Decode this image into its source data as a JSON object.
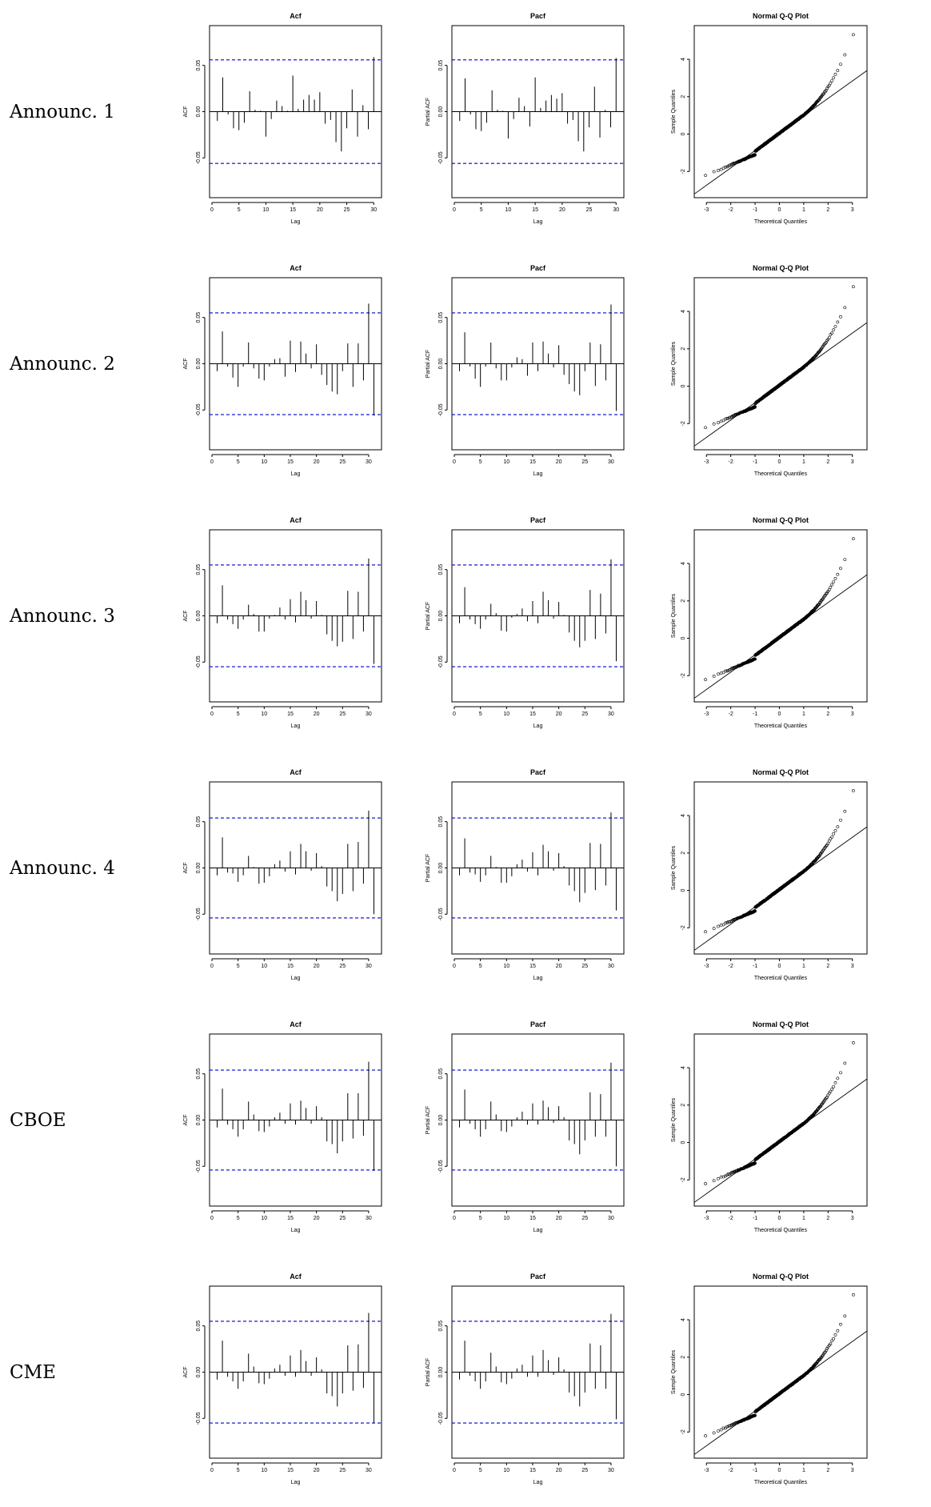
{
  "rows": [
    {
      "label": "Announc. 1"
    },
    {
      "label": "Announc. 2"
    },
    {
      "label": "Announc. 3"
    },
    {
      "label": "Announc. 4"
    },
    {
      "label": "CBOE"
    },
    {
      "label": "CME"
    }
  ],
  "colors": {
    "bounds": "#0000cc",
    "ink": "#000000"
  },
  "chart_data": [
    {
      "type": "bar",
      "row": "Announc. 1",
      "title": "Acf",
      "xlabel": "Lag",
      "ylabel": "ACF",
      "bounds": [
        0.056,
        -0.056
      ],
      "ylim": [
        -0.093,
        0.093
      ],
      "xlim": [
        0,
        31
      ],
      "x": [
        1,
        2,
        3,
        4,
        5,
        6,
        7,
        8,
        9,
        10,
        11,
        12,
        13,
        14,
        15,
        16,
        17,
        18,
        19,
        20,
        21,
        22,
        23,
        24,
        25,
        26,
        27,
        28,
        29,
        30
      ],
      "values": [
        -0.01,
        0.037,
        -0.003,
        -0.018,
        -0.02,
        -0.012,
        0.022,
        0.002,
        0.001,
        -0.027,
        -0.008,
        0.012,
        0.006,
        0.001,
        0.039,
        0.003,
        0.013,
        0.018,
        0.013,
        0.021,
        -0.013,
        -0.009,
        -0.033,
        -0.043,
        -0.018,
        0.024,
        -0.027,
        0.007,
        -0.019,
        0.059
      ]
    },
    {
      "type": "bar",
      "row": "Announc. 1",
      "title": "Pacf",
      "xlabel": "Lag",
      "ylabel": "Partial ACF",
      "bounds": [
        0.056,
        -0.056
      ],
      "ylim": [
        -0.093,
        0.093
      ],
      "xlim": [
        0,
        31
      ],
      "x": [
        1,
        2,
        3,
        4,
        5,
        6,
        7,
        8,
        9,
        10,
        11,
        12,
        13,
        14,
        15,
        16,
        17,
        18,
        19,
        20,
        21,
        22,
        23,
        24,
        25,
        26,
        27,
        28,
        29,
        30
      ],
      "values": [
        -0.01,
        0.036,
        -0.003,
        -0.019,
        -0.021,
        -0.012,
        0.023,
        0.002,
        0.001,
        -0.029,
        -0.008,
        0.015,
        0.006,
        -0.016,
        0.037,
        0.004,
        0.012,
        0.018,
        0.014,
        0.02,
        -0.013,
        -0.009,
        -0.032,
        -0.043,
        -0.017,
        0.027,
        -0.028,
        0.002,
        -0.017,
        0.058
      ]
    },
    {
      "type": "scatter",
      "row": "Announc. 1",
      "title": "Normal Q-Q Plot",
      "xlabel": "Theoretical Quantiles",
      "ylabel": "Sample Quantiles",
      "xlim": [
        -3.5,
        3.6
      ],
      "ylim": [
        -3.4,
        5.8
      ],
      "line": {
        "slope": 0.93,
        "intercept": 0.05
      }
    },
    {
      "type": "bar",
      "row": "Announc. 2",
      "title": "Acf",
      "xlabel": "Lag",
      "ylabel": "ACF",
      "bounds": [
        0.055,
        -0.055
      ],
      "ylim": [
        -0.093,
        0.093
      ],
      "xlim": [
        0,
        32
      ],
      "x": [
        1,
        2,
        3,
        4,
        5,
        6,
        7,
        8,
        9,
        10,
        11,
        12,
        13,
        14,
        15,
        16,
        17,
        18,
        19,
        20,
        21,
        22,
        23,
        24,
        25,
        26,
        27,
        28,
        29,
        30,
        31
      ],
      "values": [
        -0.008,
        0.035,
        -0.003,
        -0.015,
        -0.025,
        -0.003,
        0.023,
        -0.005,
        -0.016,
        -0.018,
        -0.003,
        0.005,
        0.006,
        -0.014,
        0.025,
        -0.009,
        0.024,
        0.011,
        -0.005,
        0.021,
        -0.012,
        -0.023,
        -0.03,
        -0.033,
        -0.008,
        0.022,
        -0.025,
        0.022,
        -0.018,
        0.065,
        -0.056
      ]
    },
    {
      "type": "bar",
      "row": "Announc. 2",
      "title": "Pacf",
      "xlabel": "Lag",
      "ylabel": "Partial ACF",
      "bounds": [
        0.055,
        -0.055
      ],
      "ylim": [
        -0.093,
        0.093
      ],
      "xlim": [
        0,
        32
      ],
      "x": [
        1,
        2,
        3,
        4,
        5,
        6,
        7,
        8,
        9,
        10,
        11,
        12,
        13,
        14,
        15,
        16,
        17,
        18,
        19,
        20,
        21,
        22,
        23,
        24,
        25,
        26,
        27,
        28,
        29,
        30,
        31
      ],
      "values": [
        -0.008,
        0.034,
        -0.003,
        -0.016,
        -0.025,
        -0.003,
        0.023,
        -0.005,
        -0.018,
        -0.018,
        -0.004,
        0.007,
        0.005,
        -0.013,
        0.023,
        -0.008,
        0.024,
        0.011,
        -0.004,
        0.02,
        -0.012,
        -0.022,
        -0.03,
        -0.034,
        -0.008,
        0.023,
        -0.024,
        0.021,
        -0.018,
        0.064,
        -0.051
      ]
    },
    {
      "type": "scatter",
      "row": "Announc. 2",
      "title": "Normal Q-Q Plot",
      "xlabel": "Theoretical Quantiles",
      "ylabel": "Sample Quantiles",
      "xlim": [
        -3.5,
        3.6
      ],
      "ylim": [
        -3.4,
        5.8
      ],
      "line": {
        "slope": 0.93,
        "intercept": 0.05
      }
    },
    {
      "type": "bar",
      "row": "Announc. 3",
      "title": "Acf",
      "xlabel": "Lag",
      "ylabel": "ACF",
      "bounds": [
        0.055,
        -0.055
      ],
      "ylim": [
        -0.093,
        0.093
      ],
      "xlim": [
        0,
        32
      ],
      "x": [
        1,
        2,
        3,
        4,
        5,
        6,
        7,
        8,
        9,
        10,
        11,
        12,
        13,
        14,
        15,
        16,
        17,
        18,
        19,
        20,
        21,
        22,
        23,
        24,
        25,
        26,
        27,
        28,
        29,
        30,
        31
      ],
      "values": [
        -0.008,
        0.033,
        -0.004,
        -0.009,
        -0.014,
        -0.004,
        0.012,
        0.002,
        -0.017,
        -0.017,
        -0.003,
        0.001,
        0.009,
        -0.004,
        0.018,
        -0.007,
        0.026,
        0.017,
        -0.003,
        0.016,
        0.001,
        -0.02,
        -0.027,
        -0.033,
        -0.028,
        0.027,
        -0.025,
        0.026,
        -0.017,
        0.062,
        -0.052
      ]
    },
    {
      "type": "bar",
      "row": "Announc. 3",
      "title": "Pacf",
      "xlabel": "Lag",
      "ylabel": "Partial ACF",
      "bounds": [
        0.055,
        -0.055
      ],
      "ylim": [
        -0.093,
        0.093
      ],
      "xlim": [
        0,
        32
      ],
      "x": [
        1,
        2,
        3,
        4,
        5,
        6,
        7,
        8,
        9,
        10,
        11,
        12,
        13,
        14,
        15,
        16,
        17,
        18,
        19,
        20,
        21,
        22,
        23,
        24,
        25,
        26,
        27,
        28,
        29,
        30,
        31
      ],
      "values": [
        -0.008,
        0.031,
        -0.004,
        -0.009,
        -0.014,
        -0.004,
        0.013,
        0.003,
        -0.016,
        -0.017,
        -0.002,
        0.002,
        0.008,
        -0.006,
        0.016,
        -0.008,
        0.026,
        0.017,
        -0.003,
        0.015,
        0.001,
        -0.018,
        -0.027,
        -0.034,
        -0.027,
        0.028,
        -0.025,
        0.024,
        -0.019,
        0.061,
        -0.049
      ]
    },
    {
      "type": "scatter",
      "row": "Announc. 3",
      "title": "Normal Q-Q Plot",
      "xlabel": "Theoretical Quantiles",
      "ylabel": "Sample Quantiles",
      "xlim": [
        -3.5,
        3.6
      ],
      "ylim": [
        -3.4,
        5.8
      ],
      "line": {
        "slope": 0.93,
        "intercept": 0.05
      }
    },
    {
      "type": "bar",
      "row": "Announc. 4",
      "title": "Acf",
      "xlabel": "Lag",
      "ylabel": "ACF",
      "bounds": [
        0.054,
        -0.054
      ],
      "ylim": [
        -0.093,
        0.093
      ],
      "xlim": [
        0,
        32
      ],
      "x": [
        1,
        2,
        3,
        4,
        5,
        6,
        7,
        8,
        9,
        10,
        11,
        12,
        13,
        14,
        15,
        16,
        17,
        18,
        19,
        20,
        21,
        22,
        23,
        24,
        25,
        26,
        27,
        28,
        29,
        30,
        31
      ],
      "values": [
        -0.008,
        0.033,
        -0.005,
        -0.006,
        -0.015,
        -0.008,
        0.013,
        0.001,
        -0.017,
        -0.016,
        -0.009,
        0.004,
        0.008,
        -0.004,
        0.018,
        -0.007,
        0.026,
        0.018,
        -0.003,
        0.016,
        0.002,
        -0.02,
        -0.025,
        -0.036,
        -0.028,
        0.026,
        -0.025,
        0.028,
        -0.017,
        0.062,
        -0.05
      ]
    },
    {
      "type": "bar",
      "row": "Announc. 4",
      "title": "Pacf",
      "xlabel": "Lag",
      "ylabel": "Partial ACF",
      "bounds": [
        0.054,
        -0.054
      ],
      "ylim": [
        -0.093,
        0.093
      ],
      "xlim": [
        0,
        32
      ],
      "x": [
        1,
        2,
        3,
        4,
        5,
        6,
        7,
        8,
        9,
        10,
        11,
        12,
        13,
        14,
        15,
        16,
        17,
        18,
        19,
        20,
        21,
        22,
        23,
        24,
        25,
        26,
        27,
        28,
        29,
        30,
        31
      ],
      "values": [
        -0.008,
        0.032,
        -0.005,
        -0.007,
        -0.015,
        -0.008,
        0.013,
        0.001,
        -0.016,
        -0.016,
        -0.009,
        0.004,
        0.009,
        -0.004,
        0.017,
        -0.008,
        0.025,
        0.018,
        -0.003,
        0.016,
        0.002,
        -0.019,
        -0.025,
        -0.037,
        -0.027,
        0.027,
        -0.024,
        0.026,
        -0.019,
        0.06,
        -0.046
      ]
    },
    {
      "type": "scatter",
      "row": "Announc. 4",
      "title": "Normal Q-Q Plot",
      "xlabel": "Theoretical Quantiles",
      "ylabel": "Sample Quantiles",
      "xlim": [
        -3.5,
        3.6
      ],
      "ylim": [
        -3.4,
        5.8
      ],
      "line": {
        "slope": 0.93,
        "intercept": 0.05
      }
    },
    {
      "type": "bar",
      "row": "CBOE",
      "title": "Acf",
      "xlabel": "Lag",
      "ylabel": "ACF",
      "bounds": [
        0.054,
        -0.054
      ],
      "ylim": [
        -0.093,
        0.093
      ],
      "xlim": [
        0,
        32
      ],
      "x": [
        1,
        2,
        3,
        4,
        5,
        6,
        7,
        8,
        9,
        10,
        11,
        12,
        13,
        14,
        15,
        16,
        17,
        18,
        19,
        20,
        21,
        22,
        23,
        24,
        25,
        26,
        27,
        28,
        29,
        30,
        31
      ],
      "values": [
        -0.008,
        0.034,
        -0.005,
        -0.01,
        -0.018,
        -0.01,
        0.02,
        0.006,
        -0.012,
        -0.013,
        -0.007,
        0.003,
        0.008,
        -0.004,
        0.018,
        -0.005,
        0.021,
        0.013,
        -0.004,
        0.015,
        0.003,
        -0.023,
        -0.026,
        -0.036,
        -0.023,
        0.029,
        -0.02,
        0.029,
        -0.017,
        0.063,
        -0.055
      ]
    },
    {
      "type": "bar",
      "row": "CBOE",
      "title": "Pacf",
      "xlabel": "Lag",
      "ylabel": "Partial ACF",
      "bounds": [
        0.054,
        -0.054
      ],
      "ylim": [
        -0.093,
        0.093
      ],
      "xlim": [
        0,
        32
      ],
      "x": [
        1,
        2,
        3,
        4,
        5,
        6,
        7,
        8,
        9,
        10,
        11,
        12,
        13,
        14,
        15,
        16,
        17,
        18,
        19,
        20,
        21,
        22,
        23,
        24,
        25,
        26,
        27,
        28,
        29,
        30,
        31
      ],
      "values": [
        -0.008,
        0.033,
        -0.004,
        -0.01,
        -0.018,
        -0.01,
        0.02,
        0.006,
        -0.012,
        -0.013,
        -0.007,
        0.003,
        0.009,
        -0.005,
        0.018,
        -0.005,
        0.021,
        0.014,
        -0.003,
        0.015,
        0.003,
        -0.022,
        -0.026,
        -0.037,
        -0.022,
        0.03,
        -0.018,
        0.028,
        -0.018,
        0.062,
        -0.05
      ]
    },
    {
      "type": "scatter",
      "row": "CBOE",
      "title": "Normal Q-Q Plot",
      "xlabel": "Theoretical Quantiles",
      "ylabel": "Sample Quantiles",
      "xlim": [
        -3.5,
        3.6
      ],
      "ylim": [
        -3.4,
        5.8
      ],
      "line": {
        "slope": 0.93,
        "intercept": 0.05
      }
    },
    {
      "type": "bar",
      "row": "CME",
      "title": "Acf",
      "xlabel": "Lag",
      "ylabel": "ACF",
      "bounds": [
        0.055,
        -0.055
      ],
      "ylim": [
        -0.093,
        0.093
      ],
      "xlim": [
        0,
        32
      ],
      "x": [
        1,
        2,
        3,
        4,
        5,
        6,
        7,
        8,
        9,
        10,
        11,
        12,
        13,
        14,
        15,
        16,
        17,
        18,
        19,
        20,
        21,
        22,
        23,
        24,
        25,
        26,
        27,
        28,
        29,
        30,
        31
      ],
      "values": [
        -0.008,
        0.034,
        -0.005,
        -0.01,
        -0.018,
        -0.01,
        0.02,
        0.006,
        -0.012,
        -0.013,
        -0.007,
        0.004,
        0.008,
        -0.004,
        0.018,
        -0.005,
        0.024,
        0.012,
        -0.004,
        0.016,
        0.003,
        -0.023,
        -0.026,
        -0.037,
        -0.023,
        0.029,
        -0.02,
        0.03,
        -0.017,
        0.064,
        -0.055
      ]
    },
    {
      "type": "bar",
      "row": "CME",
      "title": "Pacf",
      "xlabel": "Lag",
      "ylabel": "Partial ACF",
      "bounds": [
        0.055,
        -0.055
      ],
      "ylim": [
        -0.093,
        0.093
      ],
      "xlim": [
        0,
        32
      ],
      "x": [
        1,
        2,
        3,
        4,
        5,
        6,
        7,
        8,
        9,
        10,
        11,
        12,
        13,
        14,
        15,
        16,
        17,
        18,
        19,
        20,
        21,
        22,
        23,
        24,
        25,
        26,
        27,
        28,
        29,
        30,
        31
      ],
      "values": [
        -0.008,
        0.034,
        -0.004,
        -0.01,
        -0.018,
        -0.01,
        0.021,
        0.006,
        -0.011,
        -0.013,
        -0.007,
        0.004,
        0.008,
        -0.005,
        0.018,
        -0.005,
        0.024,
        0.013,
        -0.003,
        0.016,
        0.003,
        -0.022,
        -0.026,
        -0.037,
        -0.022,
        0.031,
        -0.018,
        0.029,
        -0.018,
        0.063,
        -0.051
      ]
    },
    {
      "type": "scatter",
      "row": "CME",
      "title": "Normal Q-Q Plot",
      "xlabel": "Theoretical Quantiles",
      "ylabel": "Sample Quantiles",
      "xlim": [
        -3.5,
        3.6
      ],
      "ylim": [
        -3.4,
        5.8
      ],
      "line": {
        "slope": 0.93,
        "intercept": 0.05
      }
    }
  ]
}
